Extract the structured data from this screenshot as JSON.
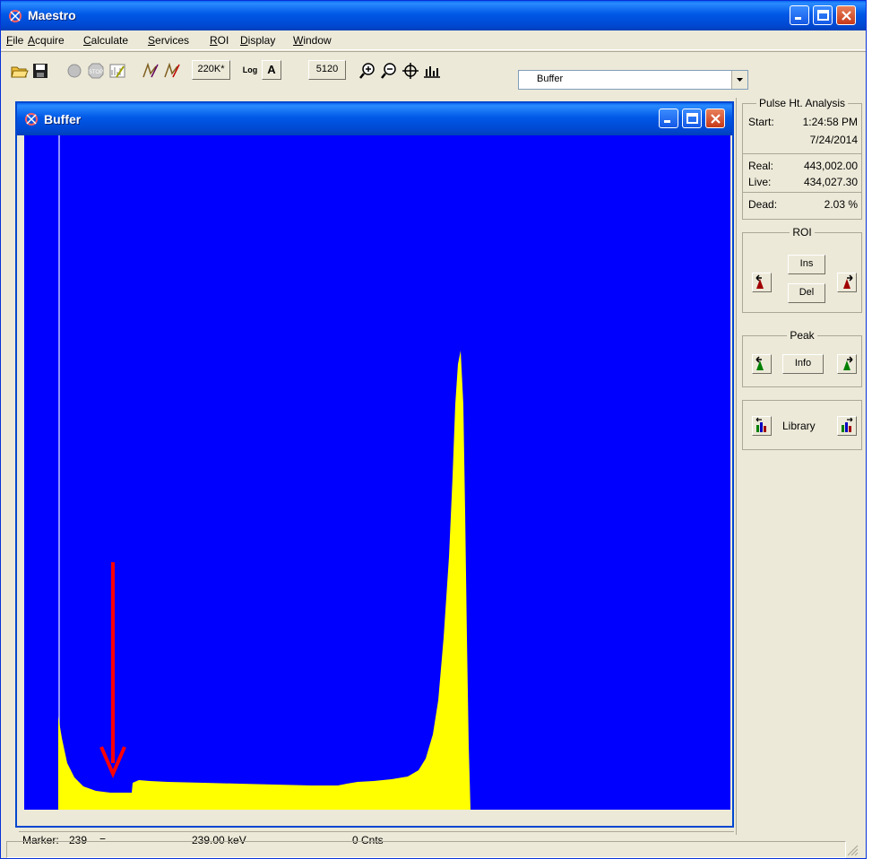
{
  "window": {
    "title": "Maestro"
  },
  "menu": [
    {
      "label": "File",
      "u": "F",
      "rest": "ile"
    },
    {
      "label": "Acquire",
      "u": "A",
      "rest": "cquire"
    },
    {
      "label": "Calculate",
      "u": "C",
      "rest": "alculate"
    },
    {
      "label": "Services",
      "u": "S",
      "rest": "ervices"
    },
    {
      "label": "ROI",
      "u": "R",
      "rest": "OI"
    },
    {
      "label": "Display",
      "u": "D",
      "rest": "isplay"
    },
    {
      "label": "Window",
      "u": "W",
      "rest": "indow"
    }
  ],
  "toolbar": {
    "vertical_scale": "220K*",
    "log_label": "Log",
    "auto_label": "A",
    "horizontal_width": "5120",
    "detector_select": "Buffer"
  },
  "child_window": {
    "title": "Buffer"
  },
  "status": {
    "marker_label": "Marker:",
    "marker_channel": "239",
    "equals": "=",
    "energy": "239.00 keV",
    "counts": "0 Cnts"
  },
  "pulse_height": {
    "group_title": "Pulse Ht. Analysis",
    "start_label": "Start:",
    "start_time": "1:24:58 PM",
    "start_date": "7/24/2014",
    "real_label": "Real:",
    "real_value": "443,002.00",
    "live_label": "Live:",
    "live_value": "434,027.30",
    "dead_label": "Dead:",
    "dead_value": "2.03",
    "dead_unit": "%"
  },
  "roi": {
    "title": "ROI",
    "ins_label": "Ins",
    "del_label": "Del"
  },
  "peak": {
    "title": "Peak",
    "info_label": "Info"
  },
  "library": {
    "label": "Library"
  },
  "colors": {
    "spectrum_bg": "#0000ff",
    "spectrum_fill": "#ffff00",
    "arrow": "#ff0000"
  }
}
